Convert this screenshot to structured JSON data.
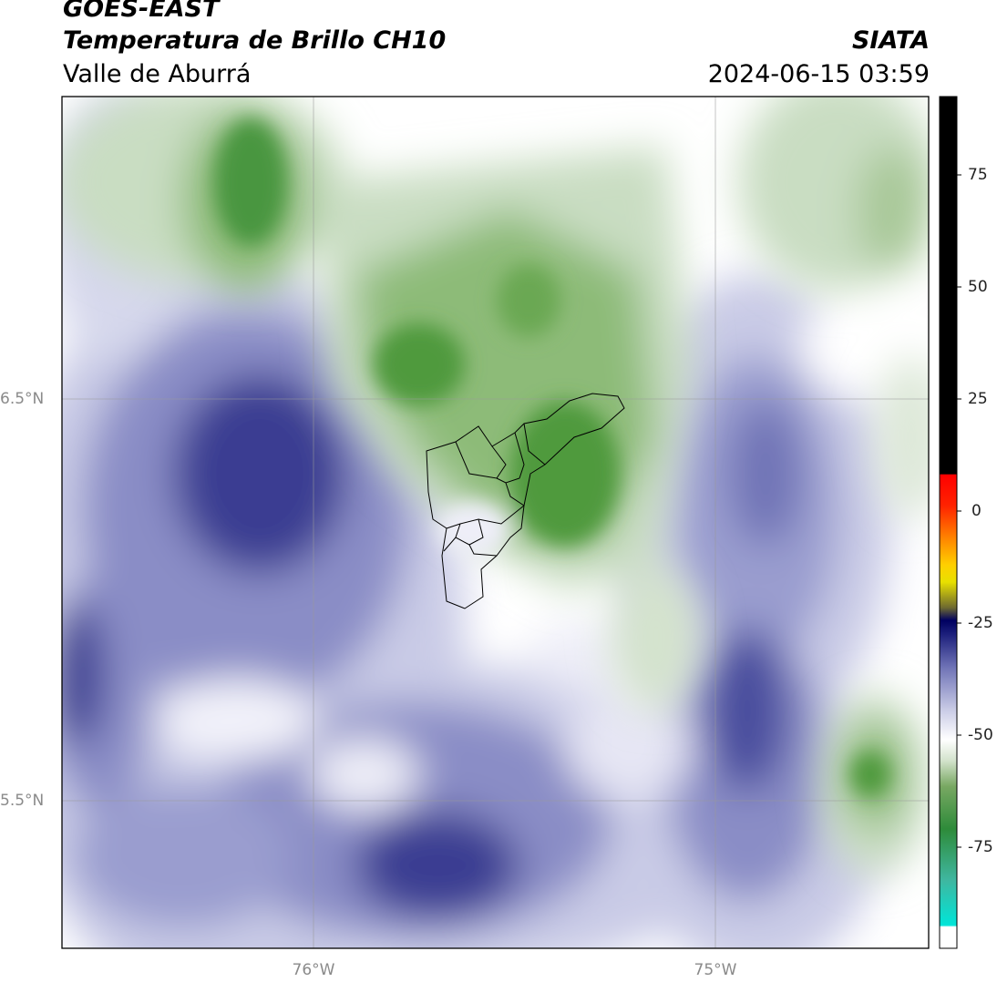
{
  "header": {
    "satellite": "GOES-EAST",
    "product": "Temperatura de Brillo CH10",
    "region": "Valle de Aburrá",
    "agency": "SIATA",
    "timestamp": "2024-06-15 03:59"
  },
  "map": {
    "lat_ticks": [
      {
        "label": "6.5°N"
      },
      {
        "label": "5.5°N"
      }
    ],
    "lon_ticks": [
      {
        "label": "76°W"
      },
      {
        "label": "75°W"
      }
    ],
    "colorbar_ticks": [
      "75",
      "50",
      "25",
      "0",
      "-25",
      "-50",
      "-75"
    ],
    "colors": {
      "deep_blue": "#2b2f86",
      "mid_blue": "#6f73b6",
      "light_lavender": "#c9cbe6",
      "white": "#ffffff",
      "light_green": "#c9ddc2",
      "mid_green": "#78a862",
      "deep_green": "#3e8a32"
    }
  }
}
